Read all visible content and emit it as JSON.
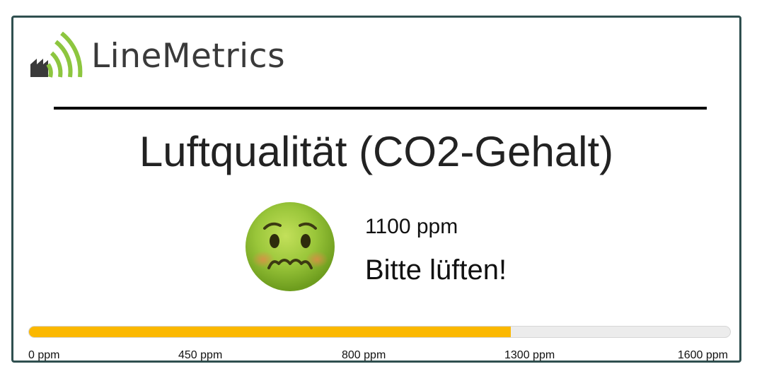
{
  "brand": {
    "name": "LineMetrics",
    "icon": "linemetrics-factory-signal-icon",
    "accent_color": "#8dc63f",
    "dark_color": "#3a3a3a"
  },
  "title": "Luftqualität (CO2-Gehalt)",
  "status": {
    "emoji": "nauseated-face-icon",
    "reading": "1100 ppm",
    "message": "Bitte lüften!"
  },
  "gauge": {
    "fill_fraction": 0.687,
    "fill_color": "#fbb800",
    "track_color": "#ececec",
    "ticks": [
      "0 ppm",
      "450 ppm",
      "800 ppm",
      "1300 ppm",
      "1600 ppm"
    ]
  },
  "border_color": "#2f4f4f"
}
